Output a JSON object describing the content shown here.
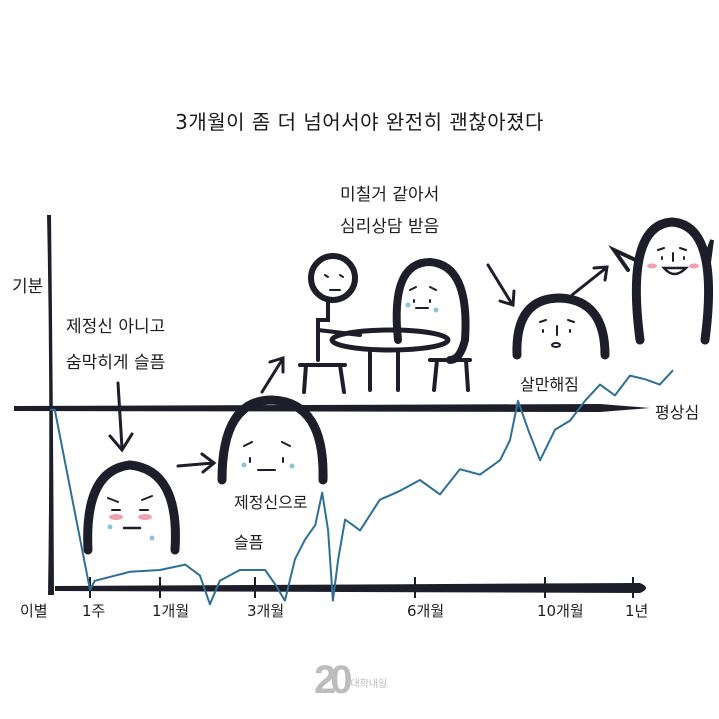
{
  "title": "3개월이 좀 더 넘어서야 완전히 괜찮아졌다",
  "annotations": {
    "y_label": "기분",
    "baseline_label": "평상심",
    "note1_line1": "제정신 아니고",
    "note1_line2": "숨막히게 슬픔",
    "note2_line1": "제정신으로",
    "note2_line2": "슬픔",
    "note3_line1": "미칠거 같아서",
    "note3_line2": "심리상담 받음",
    "note4": "살만해짐"
  },
  "logo": {
    "mark": "20",
    "text": "대학내일"
  },
  "colors": {
    "line": "#2f6f96",
    "ink": "#1e1e2a",
    "tear": "#8fc3d8",
    "blush": "#f0a0b0"
  },
  "chart_data": {
    "type": "line",
    "title": "3개월이 좀 더 넘어서야 완전히 괜찮아졌다",
    "xlabel": "",
    "ylabel": "기분",
    "x_unit": "months since breakup",
    "x_ticks": [
      {
        "value": 0,
        "label": "이별"
      },
      {
        "value": 0.25,
        "label": "1주"
      },
      {
        "value": 1,
        "label": "1개월"
      },
      {
        "value": 3,
        "label": "3개월"
      },
      {
        "value": 6,
        "label": "6개월"
      },
      {
        "value": 10,
        "label": "10개월"
      },
      {
        "value": 12,
        "label": "1년"
      }
    ],
    "reference_line": {
      "value": 100,
      "label": "평상심"
    },
    "ylim": [
      -10,
      125
    ],
    "series": [
      {
        "name": "기분",
        "x": [
          0.03,
          0.25,
          0.3,
          0.68,
          1,
          1.53,
          1.84,
          2.05,
          2.26,
          2.68,
          3.19,
          3.38,
          3.56,
          3.75,
          3.94,
          4.13,
          4.26,
          4.37,
          4.46,
          4.56,
          4.69,
          4.97,
          5.34,
          5.72,
          6.15,
          6.77,
          7.38,
          8,
          8.62,
          8.92,
          9.17,
          9.48,
          9.85,
          10.23,
          10.57,
          10.91,
          11.25,
          11.59,
          11.93,
          12.27,
          12.61,
          12.91
        ],
        "y": [
          99,
          -1,
          4,
          9,
          10,
          13,
          7,
          -9,
          4,
          10,
          10,
          2,
          -7,
          16,
          27,
          35,
          53,
          32,
          -7,
          16,
          38,
          32,
          49,
          54,
          60,
          52,
          66,
          63,
          71,
          82,
          104,
          88,
          71,
          88,
          93,
          104,
          113,
          107,
          118,
          116,
          113,
          121
        ]
      }
    ]
  }
}
